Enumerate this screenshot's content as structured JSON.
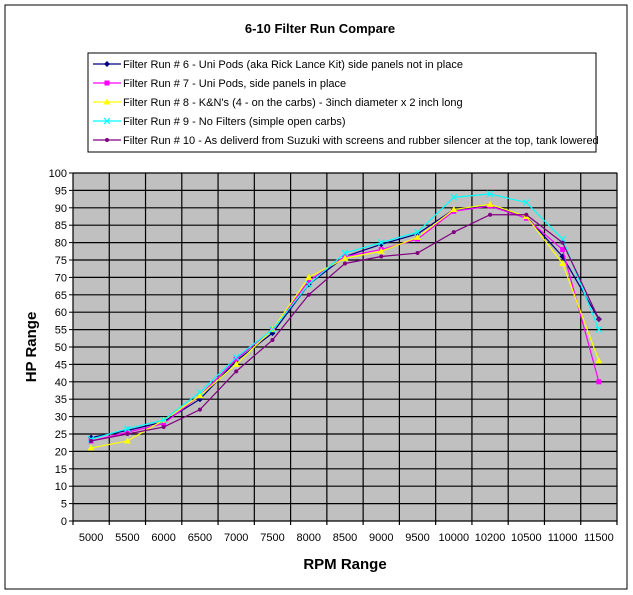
{
  "chart_data": {
    "type": "line",
    "title": "6-10 Filter Run Compare",
    "xlabel": "RPM Range",
    "ylabel": "HP Range",
    "categories": [
      "5000",
      "5500",
      "6000",
      "6500",
      "7000",
      "7500",
      "8000",
      "8500",
      "9000",
      "9500",
      "10000",
      "10200",
      "10500",
      "11000",
      "11500"
    ],
    "ylim": [
      0,
      100
    ],
    "ytick_step": 5,
    "grid": true,
    "plot_background": "#c0c0c0",
    "legend_position": "top",
    "series": [
      {
        "name": "Filter Run # 6 - Uni Pods (aka Rick Lance Kit) side panels not in place",
        "color": "#000080",
        "marker": "diamond",
        "values": [
          24,
          26,
          28.5,
          35,
          46,
          54,
          68,
          76,
          79.5,
          82.5,
          89.5,
          90.5,
          87.5,
          76,
          58
        ]
      },
      {
        "name": "Filter Run # 7 - Uni Pods, side panels in place",
        "color": "#ff00ff",
        "marker": "square",
        "values": [
          23,
          25.5,
          28,
          36,
          46.5,
          55,
          69,
          76,
          78,
          81,
          89,
          90.5,
          87,
          78,
          40
        ]
      },
      {
        "name": "Filter Run # 8 - K&N's (4 - on the carbs) - 3inch diameter x 2 inch long",
        "color": "#ffff00",
        "marker": "triangle",
        "values": [
          21,
          23,
          29,
          36,
          45,
          55,
          70,
          75.5,
          77.5,
          81.5,
          89.5,
          91,
          87.5,
          74,
          46
        ]
      },
      {
        "name": "Filter Run # 9 - No Filters (simple open carbs)",
        "color": "#00ffff",
        "marker": "x",
        "values": [
          23.5,
          26.5,
          29,
          37,
          47,
          55,
          68,
          77,
          80,
          83,
          93,
          94,
          91.5,
          81,
          55
        ]
      },
      {
        "name": "Filter Run # 10 - As deliverd from Suzuki with screens and rubber silencer at the top, tank lowered",
        "color": "#800080",
        "marker": "dot",
        "values": [
          23,
          25,
          27,
          32,
          43,
          52,
          65,
          74,
          76,
          77,
          83,
          88,
          88,
          80,
          58
        ]
      }
    ]
  }
}
